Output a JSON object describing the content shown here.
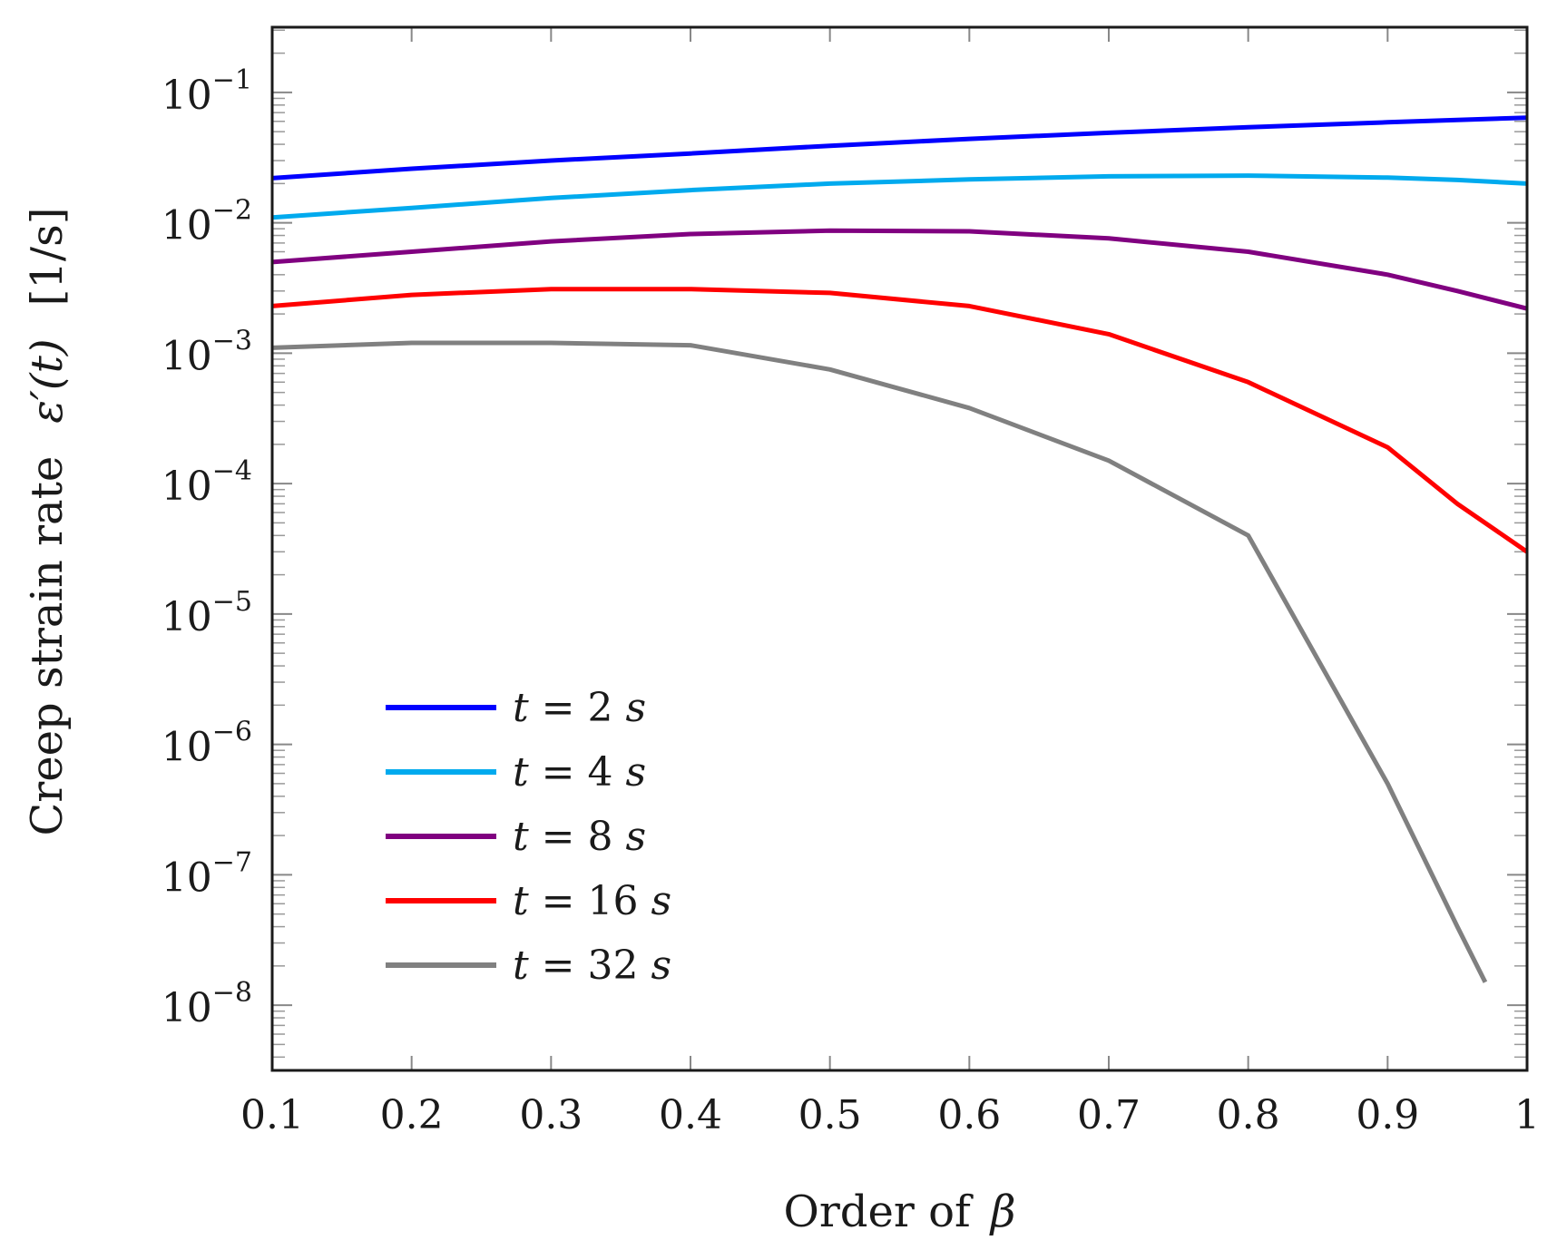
{
  "chart_data": {
    "type": "line",
    "xlabel": "Order of",
    "xlabel_symbol": "β",
    "ylabel": "Creep strain rate",
    "ylabel_symbol": "ε′(t)",
    "ylabel_unit": "[1/s]",
    "x_scale": "linear",
    "y_scale": "log",
    "xlim": [
      0.1,
      1.0
    ],
    "ylim_exponents": [
      -8.5,
      -0.5
    ],
    "x_ticks": [
      "0.1",
      "0.2",
      "0.3",
      "0.4",
      "0.5",
      "0.6",
      "0.7",
      "0.8",
      "0.9",
      "1"
    ],
    "y_tick_base": "10",
    "y_tick_exponents": [
      "−1",
      "−2",
      "−3",
      "−4",
      "−5",
      "−6",
      "−7",
      "−8"
    ],
    "legend_position": "lower-left",
    "series": [
      {
        "name": "t = 2 s",
        "legend_var": "t",
        "legend_eq": " = 2 ",
        "legend_unit": "s",
        "color": "#0000ff",
        "x": [
          0.1,
          0.2,
          0.3,
          0.4,
          0.5,
          0.6,
          0.7,
          0.8,
          0.9,
          1.0
        ],
        "y": [
          0.022,
          0.026,
          0.03,
          0.034,
          0.039,
          0.044,
          0.049,
          0.054,
          0.059,
          0.064
        ]
      },
      {
        "name": "t = 4 s",
        "legend_var": "t",
        "legend_eq": " = 4 ",
        "legend_unit": "s",
        "color": "#00aaee",
        "x": [
          0.1,
          0.2,
          0.3,
          0.4,
          0.5,
          0.6,
          0.7,
          0.8,
          0.9,
          0.95,
          1.0
        ],
        "y": [
          0.011,
          0.013,
          0.0155,
          0.0178,
          0.02,
          0.0215,
          0.0227,
          0.023,
          0.0222,
          0.0213,
          0.02
        ]
      },
      {
        "name": "t = 8 s",
        "legend_var": "t",
        "legend_eq": " = 8 ",
        "legend_unit": "s",
        "color": "#800080",
        "x": [
          0.1,
          0.2,
          0.3,
          0.4,
          0.5,
          0.6,
          0.7,
          0.8,
          0.9,
          0.95,
          1.0
        ],
        "y": [
          0.005,
          0.006,
          0.0072,
          0.0082,
          0.0087,
          0.0086,
          0.0076,
          0.006,
          0.004,
          0.003,
          0.0022
        ]
      },
      {
        "name": "t = 16 s",
        "legend_var": "t",
        "legend_eq": " = 16 ",
        "legend_unit": "s",
        "color": "#ff0000",
        "x": [
          0.1,
          0.2,
          0.3,
          0.4,
          0.5,
          0.6,
          0.7,
          0.8,
          0.9,
          0.95,
          1.0
        ],
        "y": [
          0.0023,
          0.0028,
          0.0031,
          0.0031,
          0.0029,
          0.0023,
          0.0014,
          0.0006,
          0.00019,
          7e-05,
          3e-05
        ]
      },
      {
        "name": "t = 32 s",
        "legend_var": "t",
        "legend_eq": " = 32 ",
        "legend_unit": "s",
        "color": "#808080",
        "x": [
          0.1,
          0.2,
          0.3,
          0.4,
          0.5,
          0.6,
          0.7,
          0.8,
          0.9,
          0.95,
          0.97
        ],
        "y": [
          0.0011,
          0.0012,
          0.0012,
          0.00115,
          0.00075,
          0.00038,
          0.00015,
          4e-05,
          5e-07,
          4e-08,
          1.5e-08
        ]
      }
    ]
  }
}
